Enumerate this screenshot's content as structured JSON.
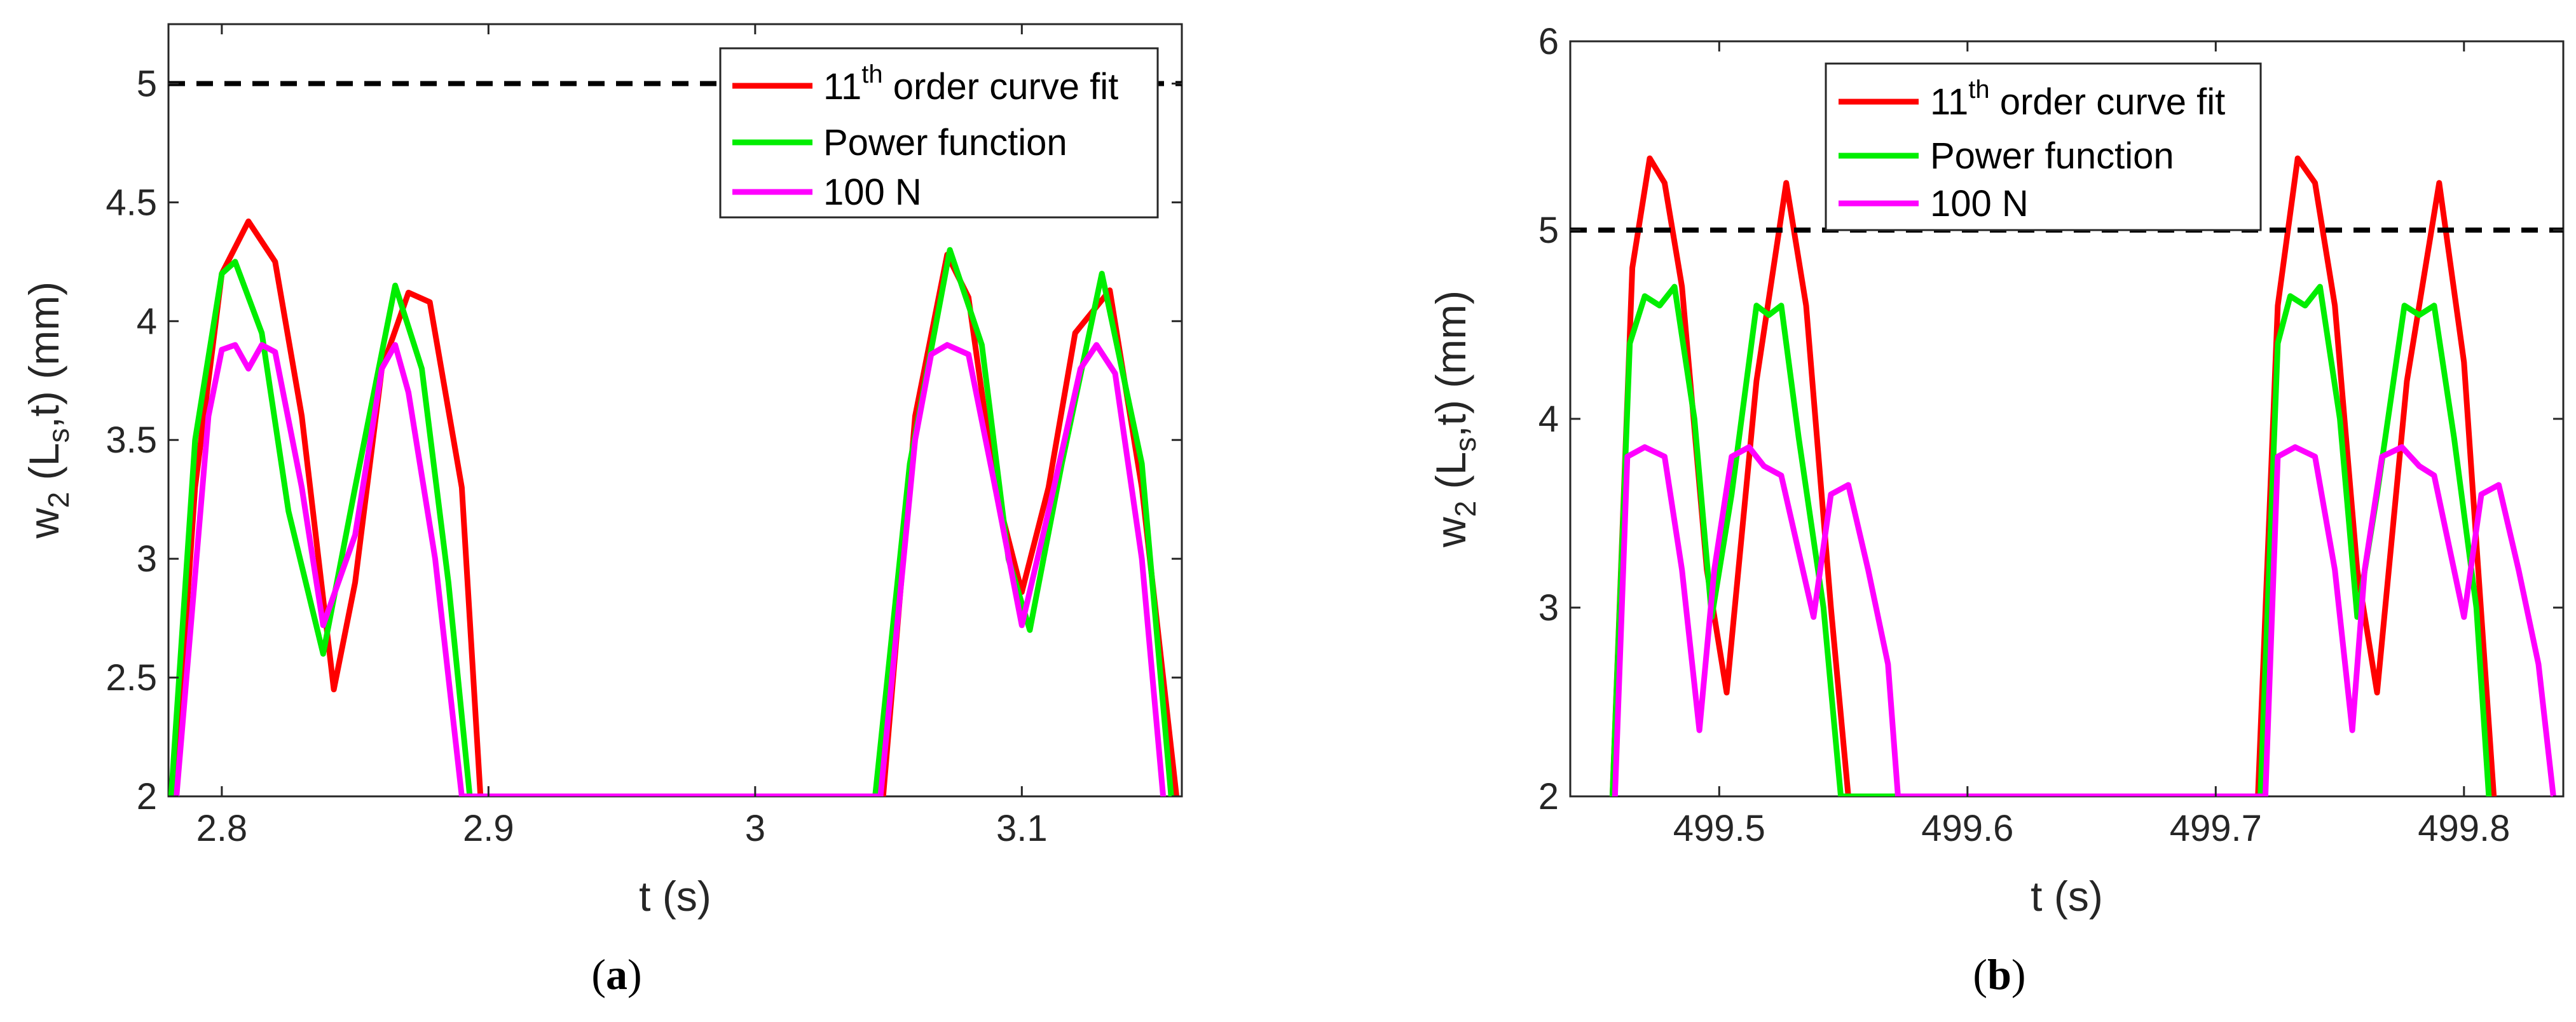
{
  "chart_data": [
    {
      "panel_label": "a",
      "type": "line",
      "xlabel": "t (s)",
      "ylabel": "w2 (Ls,t) (mm)",
      "ylabel_parts": {
        "main": "w",
        "sub1": "2",
        "mid": " (L",
        "sub2": "s",
        "end": ",t) (mm)"
      },
      "xlim": [
        2.78,
        3.16
      ],
      "ylim": [
        2,
        5.25
      ],
      "xticks": [
        2.8,
        2.9,
        3.0,
        3.1
      ],
      "xtick_labels": [
        "2.8",
        "2.9",
        "3",
        "3.1"
      ],
      "yticks": [
        2,
        2.5,
        3,
        3.5,
        4,
        4.5,
        5
      ],
      "ytick_labels": [
        "2",
        "2.5",
        "3",
        "3.5",
        "4",
        "4.5",
        "5"
      ],
      "threshold": 5,
      "legend_position": "top-right",
      "series": [
        {
          "name": "11th order curve fit",
          "label_main": "11",
          "label_sup": "th",
          "label_rest": " order curve fit",
          "color": "#ff0000",
          "x": [
            2.782,
            2.79,
            2.8,
            2.81,
            2.82,
            2.83,
            2.842,
            2.85,
            2.86,
            2.87,
            2.878,
            2.89,
            2.897,
            3.048,
            3.06,
            3.072,
            3.08,
            3.09,
            3.1,
            3.11,
            3.12,
            3.133,
            3.145,
            3.158
          ],
          "y": [
            2.0,
            3.3,
            4.2,
            4.42,
            4.25,
            3.6,
            2.45,
            2.9,
            3.8,
            4.12,
            4.08,
            3.3,
            2.0,
            2.0,
            3.6,
            4.28,
            4.1,
            3.3,
            2.86,
            3.3,
            3.95,
            4.13,
            3.3,
            2.0
          ]
        },
        {
          "name": "Power function",
          "label_main": "Power function",
          "label_sup": "",
          "label_rest": "",
          "color": "#00ee00",
          "x": [
            2.781,
            2.79,
            2.8,
            2.805,
            2.815,
            2.825,
            2.838,
            2.85,
            2.865,
            2.875,
            2.885,
            2.893,
            3.045,
            3.058,
            3.073,
            3.085,
            3.095,
            3.103,
            3.115,
            3.13,
            3.145,
            3.156
          ],
          "y": [
            2.0,
            3.5,
            4.2,
            4.25,
            3.95,
            3.2,
            2.6,
            3.3,
            4.15,
            3.8,
            2.9,
            2.0,
            2.0,
            3.4,
            4.3,
            3.9,
            3.0,
            2.7,
            3.4,
            4.2,
            3.4,
            2.0
          ]
        },
        {
          "name": "100 N",
          "label_main": "100 N",
          "label_sup": "",
          "label_rest": "",
          "color": "#ff00ff",
          "x": [
            2.783,
            2.795,
            2.8,
            2.805,
            2.81,
            2.815,
            2.82,
            2.83,
            2.838,
            2.85,
            2.86,
            2.865,
            2.87,
            2.88,
            2.885,
            2.89,
            3.047,
            3.06,
            3.066,
            3.072,
            3.08,
            3.09,
            3.1,
            3.11,
            3.122,
            3.128,
            3.135,
            3.145,
            3.153
          ],
          "y": [
            2.0,
            3.6,
            3.88,
            3.9,
            3.8,
            3.9,
            3.87,
            3.3,
            2.72,
            3.1,
            3.8,
            3.9,
            3.7,
            3.0,
            2.5,
            2.0,
            2.0,
            3.5,
            3.86,
            3.9,
            3.86,
            3.3,
            2.72,
            3.2,
            3.8,
            3.9,
            3.78,
            3.0,
            2.0
          ]
        }
      ]
    },
    {
      "panel_label": "b",
      "type": "line",
      "xlabel": "t (s)",
      "ylabel": "w2 (Ls,t) (mm)",
      "ylabel_parts": {
        "main": "w",
        "sub1": "2",
        "mid": " (L",
        "sub2": "s",
        "end": ",t) (mm)"
      },
      "xlim": [
        499.44,
        499.84
      ],
      "ylim": [
        2,
        6
      ],
      "xticks": [
        499.5,
        499.6,
        499.7,
        499.8
      ],
      "xtick_labels": [
        "499.5",
        "499.6",
        "499.7",
        "499.8"
      ],
      "yticks": [
        2,
        3,
        4,
        5,
        6
      ],
      "ytick_labels": [
        "2",
        "3",
        "4",
        "5",
        "6"
      ],
      "threshold": 5,
      "legend_position": "top-left",
      "series": [
        {
          "name": "11th order curve fit",
          "label_main": "11",
          "label_sup": "th",
          "label_rest": " order curve fit",
          "color": "#ff0000",
          "x": [
            499.457,
            499.465,
            499.472,
            499.478,
            499.485,
            499.495,
            499.503,
            499.515,
            499.527,
            499.535,
            499.545,
            499.552,
            499.717,
            499.725,
            499.733,
            499.74,
            499.748,
            499.757,
            499.765,
            499.777,
            499.79,
            499.8,
            499.812
          ],
          "y": [
            2.0,
            4.8,
            5.38,
            5.25,
            4.7,
            3.2,
            2.55,
            4.2,
            5.25,
            4.6,
            3.0,
            2.0,
            2.0,
            4.6,
            5.38,
            5.25,
            4.6,
            3.2,
            2.55,
            4.2,
            5.25,
            4.3,
            2.0
          ]
        },
        {
          "name": "Power function",
          "label_main": "Power function",
          "label_sup": "",
          "label_rest": "",
          "color": "#00ee00",
          "x": [
            499.457,
            499.464,
            499.47,
            499.476,
            499.482,
            499.49,
            499.497,
            499.505,
            499.515,
            499.52,
            499.525,
            499.532,
            499.542,
            499.549,
            499.718,
            499.725,
            499.73,
            499.736,
            499.742,
            499.75,
            499.757,
            499.765,
            499.776,
            499.782,
            499.788,
            499.796,
            499.805,
            499.81
          ],
          "y": [
            2.0,
            4.4,
            4.65,
            4.6,
            4.7,
            4.0,
            2.95,
            3.6,
            4.6,
            4.55,
            4.6,
            3.9,
            3.0,
            2.0,
            2.0,
            4.4,
            4.65,
            4.6,
            4.7,
            4.0,
            2.95,
            3.6,
            4.6,
            4.55,
            4.6,
            3.9,
            3.0,
            2.0
          ]
        },
        {
          "name": "100 N",
          "label_main": "100 N",
          "label_sup": "",
          "label_rest": "",
          "color": "#ff00ff",
          "x": [
            499.458,
            499.463,
            499.47,
            499.478,
            499.485,
            499.492,
            499.498,
            499.505,
            499.512,
            499.518,
            499.525,
            499.538,
            499.545,
            499.552,
            499.56,
            499.568,
            499.572,
            499.72,
            499.725,
            499.732,
            499.74,
            499.748,
            499.755,
            499.76,
            499.767,
            499.775,
            499.782,
            499.788,
            499.8,
            499.807,
            499.814,
            499.822,
            499.83,
            499.836
          ],
          "y": [
            2.0,
            3.8,
            3.85,
            3.8,
            3.2,
            2.35,
            3.2,
            3.8,
            3.85,
            3.75,
            3.7,
            2.95,
            3.6,
            3.65,
            3.2,
            2.7,
            2.0,
            2.0,
            3.8,
            3.85,
            3.8,
            3.2,
            2.35,
            3.2,
            3.8,
            3.85,
            3.75,
            3.7,
            2.95,
            3.6,
            3.65,
            3.2,
            2.7,
            2.0
          ]
        }
      ]
    }
  ]
}
